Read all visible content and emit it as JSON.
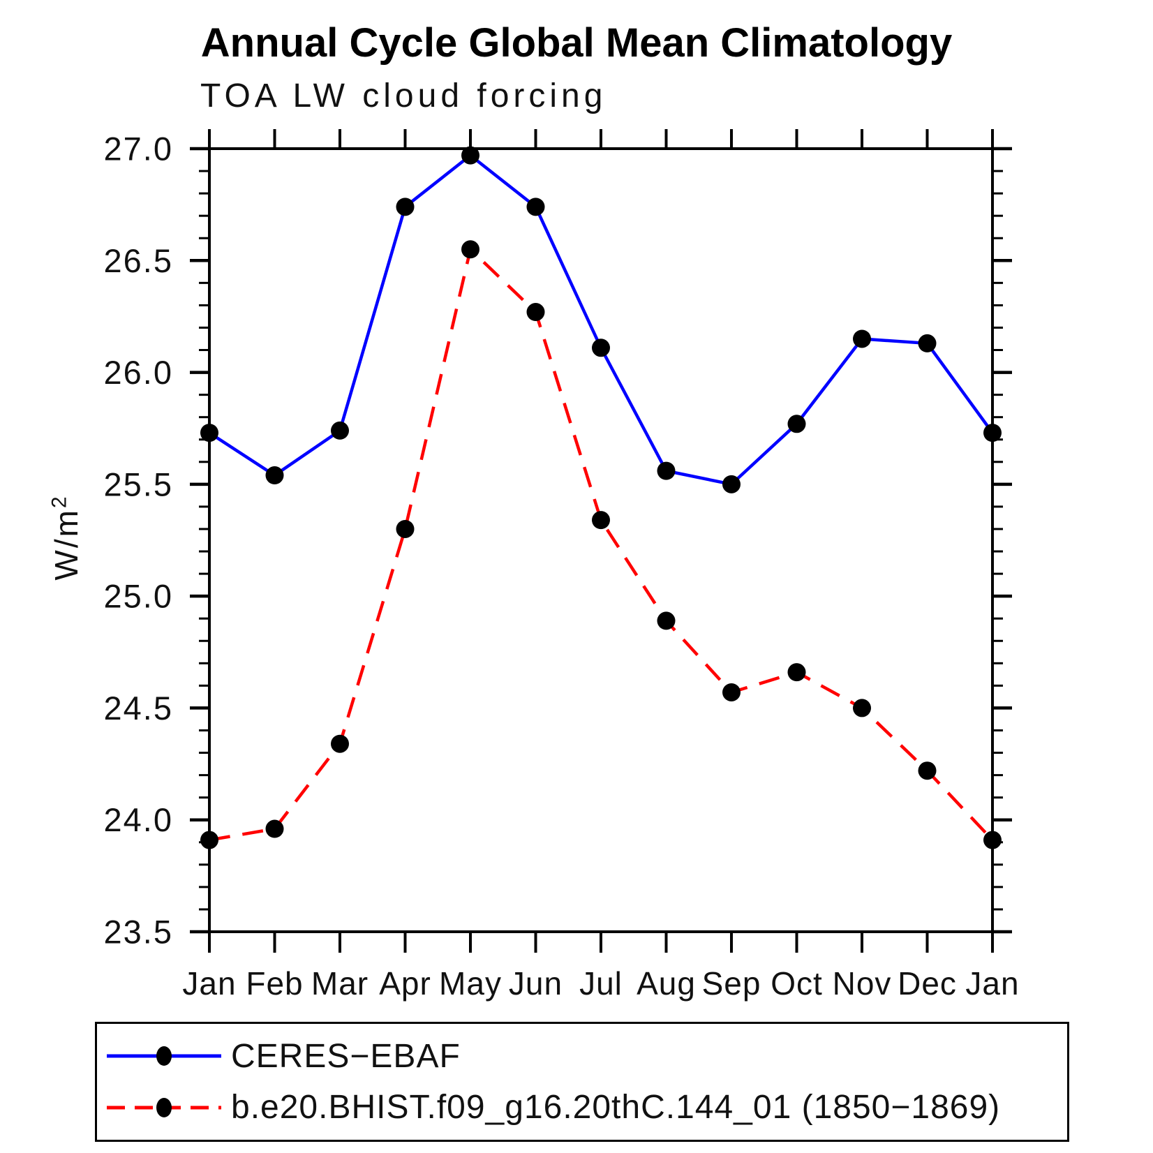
{
  "chart_data": {
    "type": "line",
    "title": "Annual Cycle Global Mean Climatology",
    "subtitle": "TOA LW cloud forcing",
    "ylabel_base": "W/m",
    "ylabel_exponent": "2",
    "categories": [
      "Jan",
      "Feb",
      "Mar",
      "Apr",
      "May",
      "Jun",
      "Jul",
      "Aug",
      "Sep",
      "Oct",
      "Nov",
      "Dec",
      "Jan"
    ],
    "ylim": [
      23.5,
      27.0
    ],
    "ytick_major_interval": 0.5,
    "ytick_minor_interval": 0.1,
    "grid": false,
    "legend_position": "bottom-left",
    "y_ticks": [
      {
        "label": "27.0",
        "value": 27.0
      },
      {
        "label": "26.5",
        "value": 26.5
      },
      {
        "label": "26.0",
        "value": 26.0
      },
      {
        "label": "25.5",
        "value": 25.5
      },
      {
        "label": "25.0",
        "value": 25.0
      },
      {
        "label": "24.5",
        "value": 24.5
      },
      {
        "label": "24.0",
        "value": 24.0
      },
      {
        "label": "23.5",
        "value": 23.5
      }
    ],
    "series": [
      {
        "name": "CERES−EBAF",
        "color": "#0000ff",
        "line_style": "solid",
        "marker_color": "#000000",
        "values": [
          25.73,
          25.54,
          25.74,
          26.74,
          26.97,
          26.74,
          26.11,
          25.56,
          25.5,
          25.77,
          26.15,
          26.13,
          25.73
        ]
      },
      {
        "name": "b.e20.BHIST.f09_g16.20thC.144_01 (1850−1869)",
        "color": "#ff0000",
        "line_style": "dashed",
        "marker_color": "#000000",
        "values": [
          23.91,
          23.96,
          24.34,
          25.3,
          26.55,
          26.27,
          25.34,
          24.89,
          24.57,
          24.66,
          24.5,
          24.22,
          23.91
        ]
      }
    ]
  }
}
